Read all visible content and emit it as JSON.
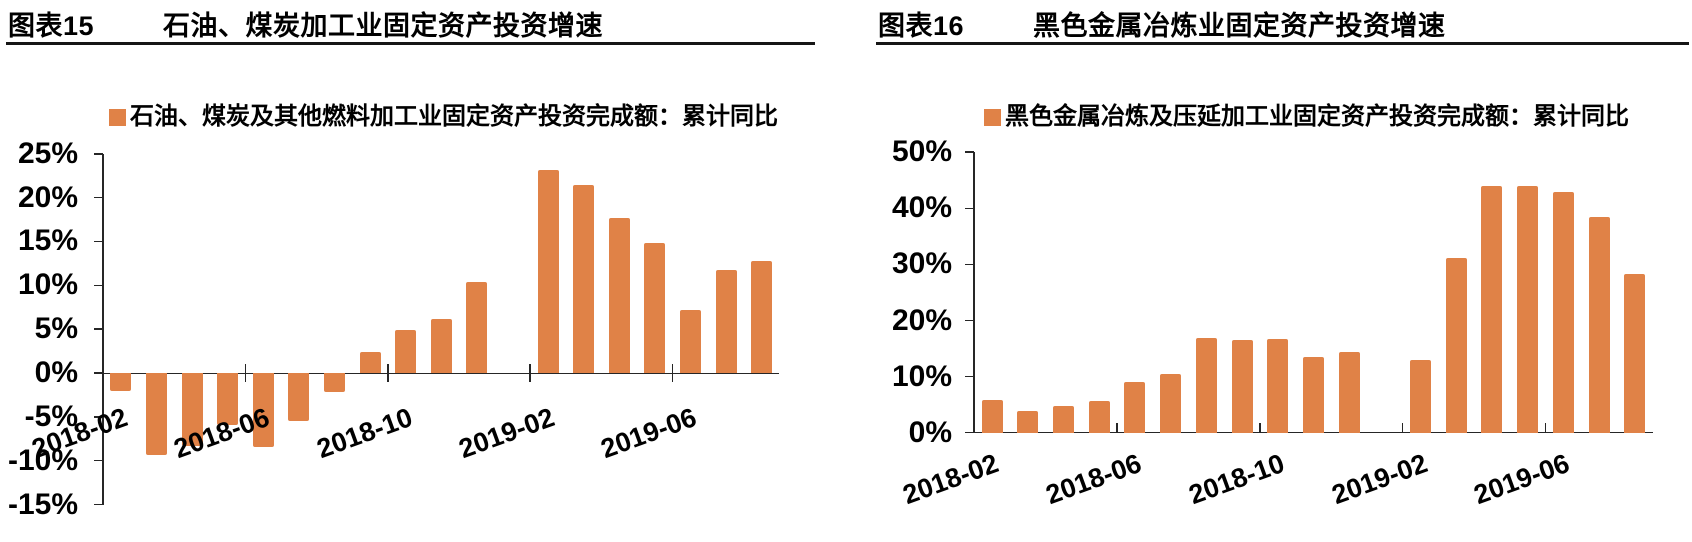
{
  "accent_color": "#E08247",
  "chart_data": [
    {
      "type": "bar",
      "figure_label": "图表15",
      "title": "石油、煤炭加工业固定资产投资增速",
      "legend": [
        "石油、煤炭及其他燃料加工业固定资产投资完成额：累计同比"
      ],
      "categories": [
        "2018-02",
        "2018-03",
        "2018-04",
        "2018-05",
        "2018-06",
        "2018-07",
        "2018-08",
        "2018-09",
        "2018-10",
        "2018-11",
        "2018-12",
        "2019-01",
        "2019-02",
        "2019-03",
        "2019-04",
        "2019-05",
        "2019-06",
        "2019-07",
        "2019-08"
      ],
      "values": [
        -2.1,
        -9.3,
        -8.3,
        -5.9,
        -8.4,
        -5.5,
        -2.2,
        2.4,
        4.9,
        6.2,
        10.4,
        null,
        23.2,
        21.4,
        17.7,
        14.8,
        7.2,
        11.8,
        12.8
      ],
      "x_tick_labels": [
        "2018-02",
        "2018-06",
        "2018-10",
        "2019-02",
        "2019-06"
      ],
      "ylim": [
        -15,
        25
      ],
      "y_tick_step": 5,
      "y_tick_labels": [
        "25%",
        "20%",
        "15%",
        "10%",
        "5%",
        "0%",
        "-5%",
        "-10%",
        "-15%"
      ],
      "ylabel": "",
      "xlabel": "",
      "grid": false,
      "legend_position": "top",
      "bar_color": "#E08247"
    },
    {
      "type": "bar",
      "figure_label": "图表16",
      "title": "黑色金属冶炼业固定资产投资增速",
      "legend": [
        "黑色金属冶炼及压延加工业固定资产投资完成额：累计同比"
      ],
      "categories": [
        "2018-02",
        "2018-03",
        "2018-04",
        "2018-05",
        "2018-06",
        "2018-07",
        "2018-08",
        "2018-09",
        "2018-10",
        "2018-11",
        "2018-12",
        "2019-01",
        "2019-02",
        "2019-03",
        "2019-04",
        "2019-05",
        "2019-06",
        "2019-07",
        "2019-08"
      ],
      "values": [
        5.9,
        3.9,
        4.7,
        5.7,
        9.1,
        10.5,
        16.8,
        16.5,
        16.7,
        13.5,
        14.4,
        null,
        12.9,
        31.1,
        43.9,
        43.9,
        42.9,
        38.4,
        28.2
      ],
      "x_tick_labels": [
        "2018-02",
        "2018-06",
        "2018-10",
        "2019-02",
        "2019-06"
      ],
      "ylim": [
        0,
        50
      ],
      "y_tick_step": 10,
      "y_tick_labels": [
        "50%",
        "40%",
        "30%",
        "20%",
        "10%",
        "0%"
      ],
      "ylabel": "",
      "xlabel": "",
      "grid": false,
      "legend_position": "top",
      "bar_color": "#E08247"
    }
  ]
}
